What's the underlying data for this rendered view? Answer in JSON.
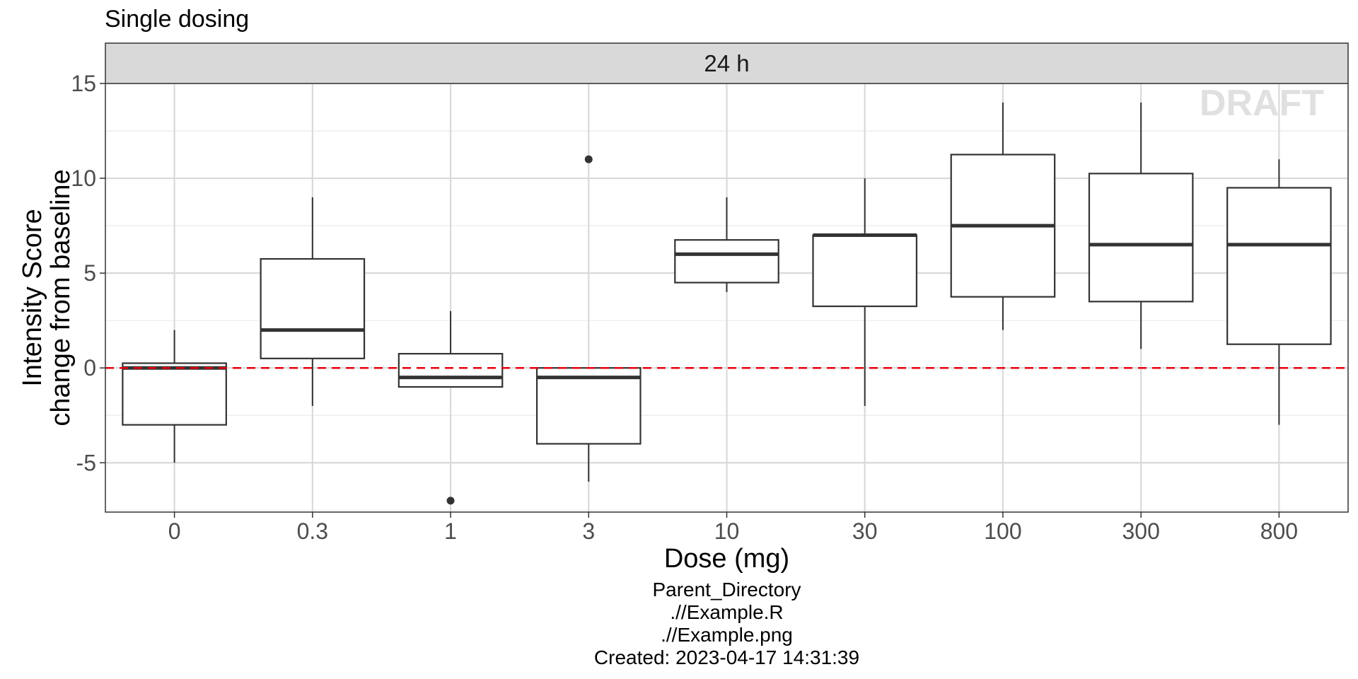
{
  "chart_data": {
    "type": "box",
    "title": "Single dosing",
    "facet_label": "24 h",
    "xlabel": "Dose (mg)",
    "ylabel_lines": [
      "Intensity Score",
      "change from baseline"
    ],
    "categories": [
      "0",
      "0.3",
      "1",
      "3",
      "10",
      "30",
      "100",
      "300",
      "800"
    ],
    "ylim": [
      -7.6,
      15
    ],
    "y_ticks": [
      -5,
      0,
      5,
      10,
      15
    ],
    "y_tick_labels": [
      "-5",
      "0",
      "5",
      "10",
      "15"
    ],
    "grid": true,
    "reference_line": {
      "y": 0,
      "style": "dashed",
      "color": "#e8000b"
    },
    "boxes": [
      {
        "category": "0",
        "whisker_low": -5,
        "q1": -3,
        "median": 0,
        "q3": 0.25,
        "whisker_high": 2,
        "outliers": []
      },
      {
        "category": "0.3",
        "whisker_low": -2,
        "q1": 0.5,
        "median": 2,
        "q3": 5.75,
        "whisker_high": 9,
        "outliers": []
      },
      {
        "category": "1",
        "whisker_low": -1,
        "q1": -1,
        "median": -0.5,
        "q3": 0.75,
        "whisker_high": 3,
        "outliers": [
          -7
        ]
      },
      {
        "category": "3",
        "whisker_low": -6,
        "q1": -4,
        "median": -0.5,
        "q3": 0,
        "whisker_high": 0,
        "outliers": [
          11
        ]
      },
      {
        "category": "10",
        "whisker_low": 4,
        "q1": 4.5,
        "median": 6,
        "q3": 6.75,
        "whisker_high": 9,
        "outliers": []
      },
      {
        "category": "30",
        "whisker_low": -2,
        "q1": 3.25,
        "median": 7,
        "q3": 7,
        "whisker_high": 10,
        "outliers": []
      },
      {
        "category": "100",
        "whisker_low": 2,
        "q1": 3.75,
        "median": 7.5,
        "q3": 11.25,
        "whisker_high": 14,
        "outliers": []
      },
      {
        "category": "300",
        "whisker_low": 1,
        "q1": 3.5,
        "median": 6.5,
        "q3": 10.25,
        "whisker_high": 14,
        "outliers": []
      },
      {
        "category": "800",
        "whisker_low": -3,
        "q1": 1.25,
        "median": 6.5,
        "q3": 9.5,
        "whisker_high": 11,
        "outliers": []
      }
    ],
    "colors": {
      "box_line": "#333333",
      "reference": "#e8000b",
      "strip_fill": "#d9d9d9",
      "grid_major": "#d9d9d9",
      "grid_minor": "#ebebeb"
    }
  },
  "watermark": "DRAFT",
  "caption": {
    "lines": [
      "Parent_Directory",
      ".//Example.R",
      ".//Example.png",
      "Created: 2023-04-17 14:31:39"
    ]
  }
}
